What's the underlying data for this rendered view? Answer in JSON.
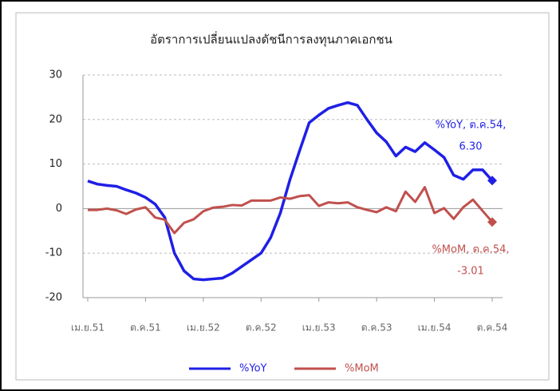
{
  "chart_data": {
    "type": "line",
    "title": "อัตราการเปลี่ยนแปลงดัชนีการลงทุนภาคเอกชน",
    "categories": [
      "เม.ย.51",
      null,
      null,
      null,
      null,
      null,
      "ต.ค.51",
      null,
      null,
      null,
      null,
      null,
      "เม.ย.52",
      null,
      null,
      null,
      null,
      null,
      "ต.ค.52",
      null,
      null,
      null,
      null,
      null,
      "เม.ย.53",
      null,
      null,
      null,
      null,
      null,
      "ต.ค.53",
      null,
      null,
      null,
      null,
      null,
      "เม.ย.54",
      null,
      null,
      null,
      null,
      null,
      "ต.ค.54"
    ],
    "series": [
      {
        "name": "%YoY",
        "color": "#1f1fe6",
        "values": [
          6.2,
          5.5,
          5.2,
          5.0,
          4.2,
          3.5,
          2.5,
          1.0,
          -2,
          -10,
          -14,
          -15.8,
          -16,
          -15.8,
          -15.6,
          -14.5,
          -13,
          -11.5,
          -10,
          -6.5,
          -1,
          6.5,
          13,
          19.3,
          21,
          22.5,
          23.2,
          23.8,
          23.2,
          20,
          17,
          15,
          11.8,
          13.8,
          12.8,
          14.8,
          13.2,
          11.5,
          7.5,
          6.6,
          8.7,
          8.7,
          6.3
        ]
      },
      {
        "name": "%MoM",
        "color": "#c0504d",
        "values": [
          -0.3,
          -0.3,
          0,
          -0.4,
          -1.2,
          -0.2,
          0.3,
          -2,
          -2.5,
          -5.5,
          -3.2,
          -2.4,
          -0.6,
          0.2,
          0.4,
          0.8,
          0.7,
          1.8,
          1.8,
          1.8,
          2.5,
          2.2,
          2.8,
          3.0,
          0.6,
          1.4,
          1.2,
          1.4,
          0.3,
          -0.3,
          -0.8,
          0.3,
          -0.6,
          3.8,
          1.5,
          4.8,
          -1.0,
          0.1,
          -2.3,
          0.3,
          2.0,
          -0.5,
          -3.01
        ]
      }
    ],
    "annotations": [
      {
        "lines": [
          "%YoY, ต.ค.54,",
          "6.30"
        ],
        "color": "#1f1fe6"
      },
      {
        "lines": [
          "%MoM, ต.ค.54,",
          "-3.01"
        ],
        "color": "#c0504d"
      }
    ],
    "ylim": [
      -20,
      30
    ],
    "yticks": [
      -20,
      -10,
      0,
      10,
      20,
      30
    ],
    "grid": true,
    "legend": "bottom"
  }
}
